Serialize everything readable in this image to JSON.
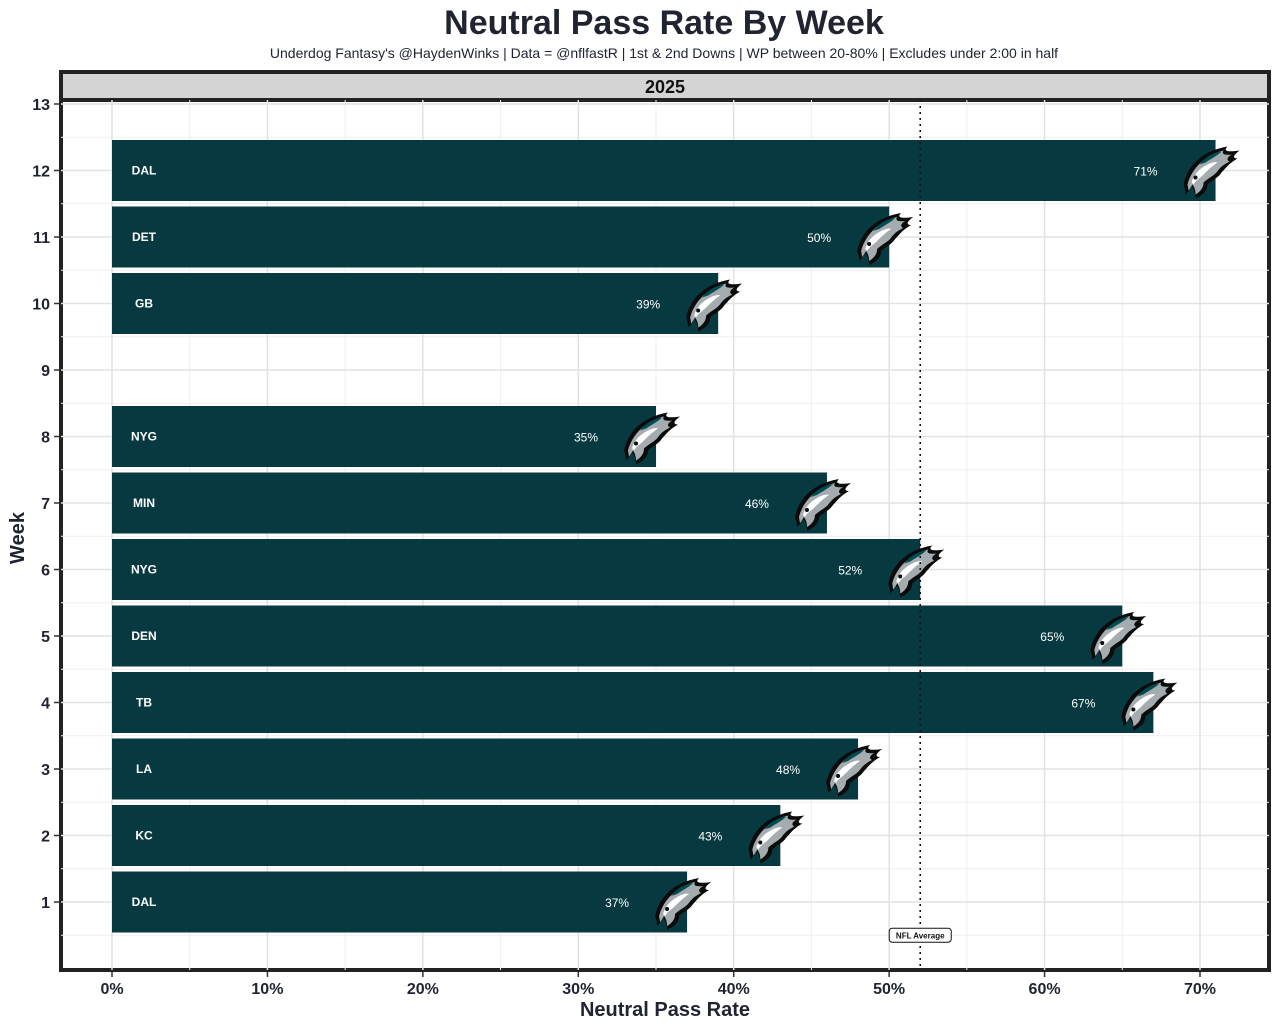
{
  "chart_data": {
    "type": "bar",
    "orientation": "horizontal",
    "title": "Neutral Pass Rate By Week",
    "subtitle": "Underdog Fantasy's @HaydenWinks | Data = @nflfastR | 1st & 2nd Downs | WP between 20-80% | Excludes under 2:00 in half",
    "facet": "2025",
    "xlabel": "Neutral Pass Rate",
    "ylabel": "Week",
    "xlim": [
      0,
      0.74
    ],
    "x_ticks": [
      {
        "value": 0,
        "label": "0%"
      },
      {
        "value": 0.1,
        "label": "10%"
      },
      {
        "value": 0.2,
        "label": "20%"
      },
      {
        "value": 0.3,
        "label": "30%"
      },
      {
        "value": 0.4,
        "label": "40%"
      },
      {
        "value": 0.5,
        "label": "50%"
      },
      {
        "value": 0.6,
        "label": "60%"
      },
      {
        "value": 0.7,
        "label": "70%"
      }
    ],
    "y_ticks": [
      "1",
      "2",
      "3",
      "4",
      "5",
      "6",
      "7",
      "8",
      "9",
      "10",
      "11",
      "12",
      "13"
    ],
    "bar_color": "#073a40",
    "reference_line": {
      "value": 0.52,
      "label": "NFL Average",
      "style": "dotted"
    },
    "grid": true,
    "bar_icon": "eagle-logo-icon",
    "bars": [
      {
        "week": 1,
        "opponent": "DAL",
        "value": 0.37,
        "label": "37%"
      },
      {
        "week": 2,
        "opponent": "KC",
        "value": 0.43,
        "label": "43%"
      },
      {
        "week": 3,
        "opponent": "LA",
        "value": 0.48,
        "label": "48%"
      },
      {
        "week": 4,
        "opponent": "TB",
        "value": 0.67,
        "label": "67%"
      },
      {
        "week": 5,
        "opponent": "DEN",
        "value": 0.65,
        "label": "65%"
      },
      {
        "week": 6,
        "opponent": "NYG",
        "value": 0.52,
        "label": "52%"
      },
      {
        "week": 7,
        "opponent": "MIN",
        "value": 0.46,
        "label": "46%"
      },
      {
        "week": 8,
        "opponent": "NYG",
        "value": 0.35,
        "label": "35%"
      },
      {
        "week": 10,
        "opponent": "GB",
        "value": 0.39,
        "label": "39%"
      },
      {
        "week": 11,
        "opponent": "DET",
        "value": 0.5,
        "label": "50%"
      },
      {
        "week": 12,
        "opponent": "DAL",
        "value": 0.71,
        "label": "71%"
      }
    ]
  }
}
